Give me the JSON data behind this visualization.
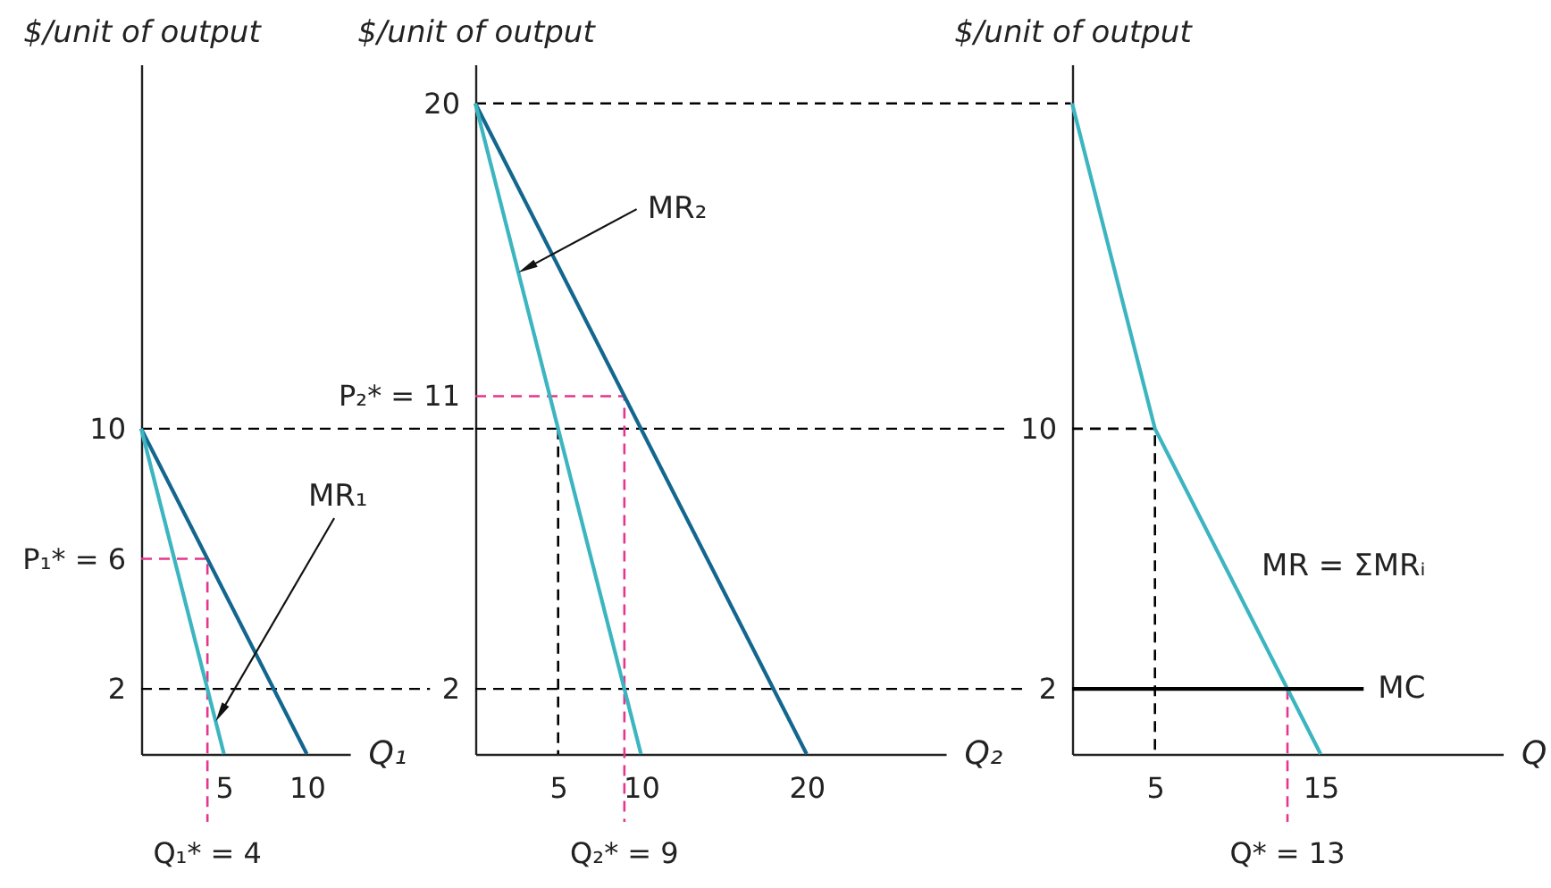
{
  "chart_data": [
    {
      "type": "line",
      "ylabel": "$/unit of output",
      "xlabel": "Q₁",
      "xlim": [
        0,
        12.6
      ],
      "ylim": [
        0,
        21.2
      ],
      "xticks": [
        5,
        10
      ],
      "yticks": [
        2,
        {
          "value": 6,
          "label": "P₁* = 6"
        },
        10
      ],
      "ref_lines": [
        {
          "axis": "y",
          "value": 10,
          "color": "#000000",
          "line_style": "dashed"
        },
        {
          "axis": "y",
          "value": 2,
          "color": "#000000",
          "line_style": "dashed"
        }
      ],
      "annotations": [
        {
          "text": "Q₁* = 4",
          "x": 4,
          "y": 0
        }
      ],
      "series": [
        {
          "color": "#e4368c",
          "line_style": "dashed",
          "x": [
            0,
            4,
            4
          ],
          "values": [
            6,
            6,
            0
          ]
        },
        {
          "color": "#13678f",
          "x": [
            0,
            10
          ],
          "values": [
            10,
            0
          ]
        },
        {
          "name": "MR₁",
          "color": "#3cb5c1",
          "x": [
            0,
            5
          ],
          "values": [
            10,
            0
          ]
        }
      ]
    },
    {
      "type": "line",
      "ylabel": "$/unit of output",
      "xlabel": "Q₂",
      "xlim": [
        0,
        28.4
      ],
      "ylim": [
        0,
        21.2
      ],
      "xticks": [
        5,
        10,
        20
      ],
      "yticks": [
        2,
        {
          "value": 11,
          "label": "P₂* = 11"
        },
        20
      ],
      "ref_lines": [
        {
          "axis": "y",
          "value": 20,
          "color": "#000000",
          "line_style": "dashed"
        },
        {
          "axis": "y",
          "value": 10,
          "color": "#000000",
          "line_style": "dashed"
        },
        {
          "axis": "y",
          "value": 2,
          "color": "#000000",
          "line_style": "dashed"
        }
      ],
      "annotations": [
        {
          "text": "Q₂* = 9",
          "x": 9,
          "y": 0
        }
      ],
      "series": [
        {
          "color": "#e4368c",
          "line_style": "dashed",
          "x": [
            0,
            9,
            9
          ],
          "values": [
            11,
            11,
            0
          ]
        },
        {
          "color": "#000000",
          "line_style": "dashed",
          "x": [
            5,
            5
          ],
          "values": [
            10,
            0
          ]
        },
        {
          "color": "#13678f",
          "x": [
            0,
            20
          ],
          "values": [
            20,
            0
          ]
        },
        {
          "name": "MR₂",
          "color": "#3cb5c1",
          "x": [
            0,
            10
          ],
          "values": [
            20,
            0
          ]
        }
      ]
    },
    {
      "type": "line",
      "ylabel": "$/unit of output",
      "xlabel": "Q",
      "xlim": [
        0,
        26
      ],
      "ylim": [
        0,
        21.2
      ],
      "xticks": [
        5,
        15
      ],
      "yticks": [
        2,
        10
      ],
      "annotations": [
        {
          "text": "Q* = 13",
          "x": 13,
          "y": 0
        }
      ],
      "series": [
        {
          "color": "#000000",
          "line_style": "dashed",
          "x": [
            0,
            5,
            5
          ],
          "values": [
            10,
            10,
            0
          ]
        },
        {
          "color": "#e4368c",
          "line_style": "dashed",
          "x": [
            13,
            13
          ],
          "values": [
            2,
            0
          ]
        },
        {
          "name": "MR = ΣMRᵢ",
          "color": "#3cb5c1",
          "x": [
            0,
            5,
            15
          ],
          "values": [
            20,
            10,
            0
          ]
        },
        {
          "name": "MC",
          "color": "#000000",
          "x": [
            0,
            17.6
          ],
          "values": [
            2,
            2
          ]
        }
      ]
    }
  ]
}
